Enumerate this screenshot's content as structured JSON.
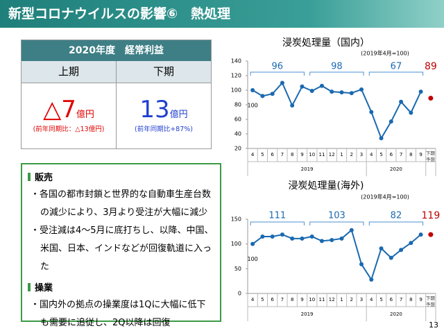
{
  "header": {
    "title": "新型コロナウイルスの影響⑥　熱処理"
  },
  "table": {
    "title": "2020年度　経常利益",
    "columns": [
      "上期",
      "下期"
    ],
    "cells": [
      {
        "value": "△7",
        "unit": "億円",
        "note": "(前年同期比：△13億円)"
      },
      {
        "value": "13",
        "unit": "億円",
        "note": "(前年同期比+87%)"
      }
    ]
  },
  "sections": [
    {
      "heading": "販売",
      "bullets": [
        "・各国の都市封鎖と世界的な自動車生産台数の減少により、3月より受注が大幅に減少",
        "・受注減は4～5月に底打ちし、以降、中国、米国、日本、インドなどが回復軌道に入った"
      ]
    },
    {
      "heading": "操業",
      "bullets": [
        "・国内外の拠点の操業度は1Qに大幅に低下も需要に追従し、2Q以降は回復"
      ]
    }
  ],
  "page_number": "13",
  "chart_data": [
    {
      "type": "line",
      "title": "浸炭処理量（国内）",
      "note": "(2019年4月=100)",
      "categories": [
        "4",
        "5",
        "6",
        "7",
        "8",
        "9",
        "10",
        "11",
        "12",
        "1",
        "2",
        "3",
        "4",
        "5",
        "6",
        "7",
        "8",
        "9",
        "下期予想"
      ],
      "years": [
        "2019",
        "2020"
      ],
      "series": [
        {
          "color": "#1a69b0",
          "values": [
            100,
            92,
            95,
            110,
            79,
            105,
            99,
            106,
            98,
            97,
            96,
            101,
            70,
            34,
            57,
            84,
            69,
            98,
            null
          ]
        },
        {
          "color": "#c00000",
          "values": [
            null,
            null,
            null,
            null,
            null,
            null,
            null,
            null,
            null,
            null,
            null,
            null,
            null,
            null,
            null,
            null,
            null,
            null,
            89
          ]
        }
      ],
      "annotations": [
        "96",
        "98",
        "67"
      ],
      "ylim": [
        20,
        140
      ],
      "yticks": [
        20,
        40,
        60,
        80,
        100,
        120,
        140
      ]
    },
    {
      "type": "line",
      "title": "浸炭処理量(海外)",
      "note": "(2019年4月=100)",
      "categories": [
        "4",
        "5",
        "6",
        "7",
        "8",
        "9",
        "10",
        "11",
        "12",
        "1",
        "2",
        "3",
        "4",
        "5",
        "6",
        "7",
        "8",
        "9",
        "下期予想"
      ],
      "years": [
        "2019",
        "2020"
      ],
      "series": [
        {
          "color": "#1a69b0",
          "values": [
            100,
            115,
            115,
            119,
            111,
            111,
            115,
            106,
            108,
            111,
            128,
            59,
            28,
            91,
            72,
            88,
            102,
            119,
            null
          ]
        },
        {
          "color": "#c00000",
          "values": [
            null,
            null,
            null,
            null,
            null,
            null,
            null,
            null,
            null,
            null,
            null,
            null,
            null,
            null,
            null,
            null,
            null,
            null,
            119
          ]
        }
      ],
      "annotations": [
        "111",
        "103",
        "82"
      ],
      "ylim": [
        0,
        150
      ],
      "yticks": [
        0,
        50,
        100,
        150
      ]
    }
  ]
}
